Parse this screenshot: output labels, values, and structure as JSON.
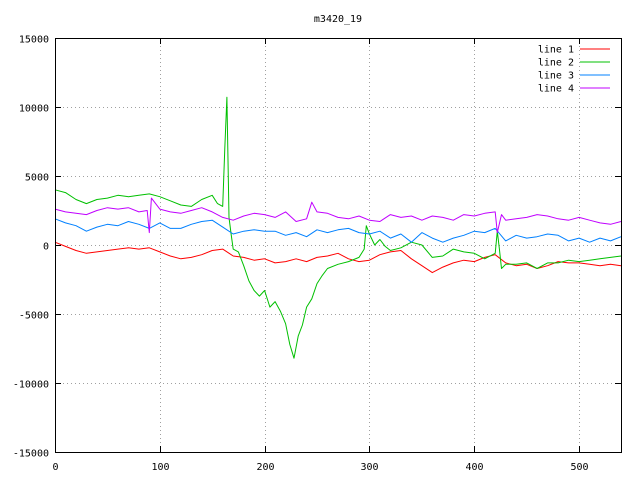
{
  "chart_data": {
    "type": "line",
    "title": "m3420_19",
    "xlabel": "",
    "ylabel": "",
    "xlim": [
      0,
      540
    ],
    "ylim": [
      -15000,
      15000
    ],
    "x_ticks": [
      0,
      100,
      200,
      300,
      400,
      500
    ],
    "y_ticks": [
      -15000,
      -10000,
      -5000,
      0,
      5000,
      10000,
      15000
    ],
    "grid": true,
    "legend_position": "top-right",
    "series": [
      {
        "name": "line 1",
        "color": "#ff0000",
        "x": [
          0,
          10,
          20,
          30,
          40,
          50,
          60,
          70,
          80,
          90,
          100,
          110,
          120,
          130,
          140,
          150,
          160,
          170,
          180,
          190,
          200,
          210,
          220,
          230,
          240,
          250,
          260,
          270,
          280,
          290,
          300,
          310,
          320,
          330,
          340,
          350,
          360,
          370,
          380,
          390,
          400,
          410,
          420,
          430,
          440,
          450,
          460,
          470,
          480,
          490,
          500,
          510,
          520,
          530,
          540
        ],
        "y": [
          200,
          -100,
          -400,
          -600,
          -500,
          -400,
          -300,
          -200,
          -300,
          -200,
          -500,
          -800,
          -1000,
          -900,
          -700,
          -400,
          -300,
          -800,
          -900,
          -1100,
          -1000,
          -1300,
          -1200,
          -1000,
          -1200,
          -900,
          -800,
          -600,
          -1000,
          -1200,
          -1100,
          -700,
          -500,
          -400,
          -1000,
          -1500,
          -2000,
          -1600,
          -1300,
          -1100,
          -1200,
          -900,
          -700,
          -1300,
          -1500,
          -1400,
          -1700,
          -1500,
          -1200,
          -1300,
          -1300,
          -1400,
          -1500,
          -1400,
          -1500
        ]
      },
      {
        "name": "line 2",
        "color": "#00c000",
        "x": [
          0,
          10,
          20,
          30,
          40,
          50,
          60,
          70,
          80,
          90,
          100,
          110,
          120,
          130,
          140,
          150,
          155,
          160,
          162,
          164,
          166,
          168,
          170,
          175,
          180,
          185,
          190,
          195,
          200,
          205,
          210,
          215,
          220,
          224,
          228,
          232,
          236,
          240,
          245,
          250,
          255,
          260,
          270,
          280,
          290,
          295,
          297,
          300,
          305,
          310,
          315,
          320,
          330,
          340,
          350,
          360,
          370,
          380,
          390,
          400,
          410,
          420,
          422,
          424,
          426,
          430,
          440,
          450,
          460,
          470,
          480,
          490,
          500,
          510,
          520,
          530,
          540
        ],
        "y": [
          4000,
          3800,
          3300,
          3000,
          3300,
          3400,
          3600,
          3500,
          3600,
          3700,
          3500,
          3200,
          2900,
          2800,
          3300,
          3600,
          3000,
          2800,
          7000,
          10700,
          2000,
          800,
          -300,
          -500,
          -1500,
          -2600,
          -3300,
          -3700,
          -3300,
          -4500,
          -4100,
          -4800,
          -5700,
          -7200,
          -8200,
          -6600,
          -5800,
          -4500,
          -3900,
          -2800,
          -2200,
          -1700,
          -1400,
          -1200,
          -900,
          -300,
          1400,
          800,
          0,
          400,
          -100,
          -400,
          -200,
          200,
          0,
          -900,
          -800,
          -300,
          -500,
          -600,
          -1000,
          -600,
          1000,
          -300,
          -1700,
          -1400,
          -1400,
          -1300,
          -1700,
          -1300,
          -1300,
          -1100,
          -1200,
          -1100,
          -1000,
          -900,
          -800
        ]
      },
      {
        "name": "line 3",
        "color": "#0080ff",
        "x": [
          0,
          10,
          20,
          30,
          40,
          50,
          60,
          70,
          80,
          90,
          100,
          110,
          120,
          130,
          140,
          150,
          160,
          170,
          180,
          190,
          200,
          210,
          220,
          230,
          240,
          250,
          260,
          270,
          280,
          290,
          300,
          310,
          320,
          330,
          340,
          350,
          360,
          370,
          380,
          390,
          400,
          410,
          420,
          430,
          440,
          450,
          460,
          470,
          480,
          490,
          500,
          510,
          520,
          530,
          540
        ],
        "y": [
          1900,
          1600,
          1400,
          1000,
          1300,
          1500,
          1400,
          1700,
          1500,
          1200,
          1600,
          1200,
          1200,
          1500,
          1700,
          1800,
          1300,
          800,
          1000,
          1100,
          1000,
          1000,
          700,
          900,
          600,
          1100,
          900,
          1100,
          1200,
          900,
          800,
          1000,
          500,
          800,
          200,
          900,
          500,
          200,
          500,
          700,
          1000,
          900,
          1200,
          300,
          700,
          500,
          600,
          800,
          700,
          300,
          500,
          200,
          500,
          300,
          600
        ]
      },
      {
        "name": "line 4",
        "color": "#c000ff",
        "x": [
          0,
          10,
          20,
          30,
          40,
          50,
          60,
          70,
          80,
          88,
          90,
          92,
          100,
          110,
          120,
          130,
          140,
          150,
          160,
          170,
          180,
          190,
          200,
          210,
          220,
          230,
          240,
          245,
          250,
          260,
          270,
          280,
          290,
          300,
          310,
          320,
          330,
          340,
          350,
          360,
          370,
          380,
          390,
          400,
          410,
          420,
          422,
          426,
          430,
          440,
          450,
          460,
          470,
          480,
          490,
          500,
          510,
          520,
          530,
          540
        ],
        "y": [
          2600,
          2400,
          2300,
          2200,
          2500,
          2700,
          2600,
          2700,
          2400,
          2500,
          900,
          3400,
          2600,
          2400,
          2300,
          2500,
          2700,
          2400,
          2000,
          1800,
          2100,
          2300,
          2200,
          2000,
          2400,
          1700,
          1900,
          3100,
          2400,
          2300,
          2000,
          1900,
          2100,
          1800,
          1700,
          2200,
          2000,
          2100,
          1800,
          2100,
          2000,
          1800,
          2200,
          2100,
          2300,
          2400,
          900,
          2200,
          1800,
          1900,
          2000,
          2200,
          2100,
          1900,
          1800,
          2000,
          1800,
          1600,
          1500,
          1700
        ]
      }
    ]
  }
}
